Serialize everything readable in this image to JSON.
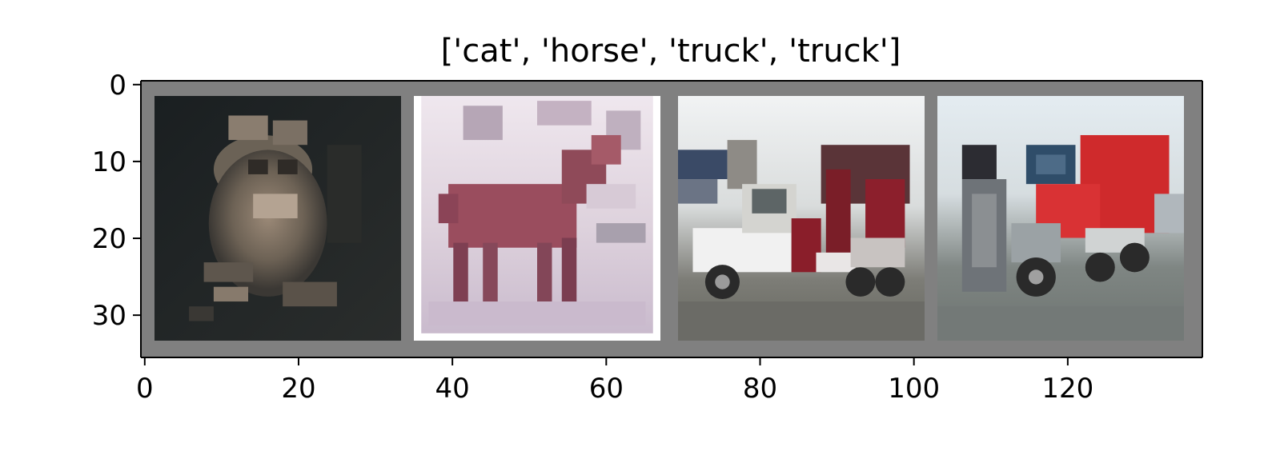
{
  "chart_data": {
    "type": "image_grid",
    "title": "['cat', 'horse', 'truck', 'truck']",
    "xlim": [
      -0.5,
      137.5
    ],
    "ylim": [
      35.5,
      -0.5
    ],
    "x_ticks": [
      0,
      20,
      40,
      60,
      80,
      100,
      120
    ],
    "y_ticks": [
      0,
      10,
      20,
      30
    ],
    "border_color": "#808080",
    "images": [
      {
        "label": "cat",
        "x": [
          2,
          34
        ],
        "y": [
          2,
          34
        ],
        "dominant_colors": [
          "#1b2022",
          "#8a7a6a",
          "#3a3a36"
        ]
      },
      {
        "label": "horse",
        "x": [
          36,
          68
        ],
        "y": [
          2,
          34
        ],
        "dominant_colors": [
          "#ddd2dc",
          "#9a4d5e",
          "#c9b6c8"
        ]
      },
      {
        "label": "truck",
        "x": [
          70,
          102
        ],
        "y": [
          2,
          34
        ],
        "dominant_colors": [
          "#e8ecef",
          "#7a1e28",
          "#6a6b66"
        ]
      },
      {
        "label": "truck",
        "x": [
          104,
          136
        ],
        "y": [
          2,
          34
        ],
        "dominant_colors": [
          "#dfe8ee",
          "#cf2a2c",
          "#7a807d"
        ]
      }
    ]
  }
}
